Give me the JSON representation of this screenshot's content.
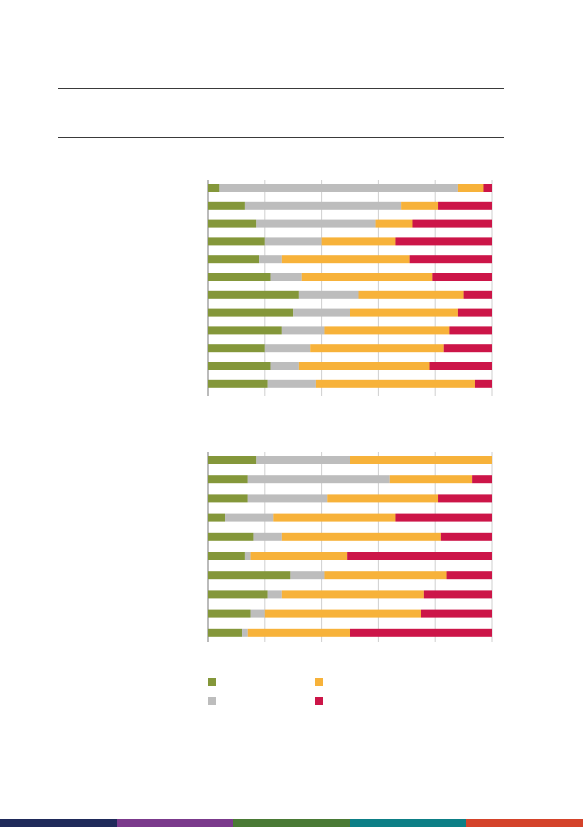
{
  "colors": {
    "green": "#84973a",
    "grey": "#bdbdbd",
    "orange": "#f7b23a",
    "crimson": "#cc1548",
    "rule": "#3a3a3a",
    "gridline": "#cfcfcf"
  },
  "chart_data": [
    {
      "type": "bar",
      "orientation": "horizontal",
      "stacked": true,
      "title": "",
      "xlabel": "",
      "ylabel": "",
      "xlim": [
        0,
        100
      ],
      "grid": true,
      "categories": [
        "",
        "",
        "",
        "",
        "",
        "",
        "",
        "",
        "",
        "",
        "",
        ""
      ],
      "series": [
        {
          "color": "#84973a",
          "values": [
            4,
            13,
            17,
            20,
            18,
            22,
            32,
            30,
            26,
            20,
            22,
            21
          ]
        },
        {
          "color": "#bdbdbd",
          "values": [
            84,
            55,
            42,
            20,
            8,
            11,
            21,
            20,
            15,
            16,
            10,
            17
          ]
        },
        {
          "color": "#f7b23a",
          "values": [
            9,
            13,
            13,
            26,
            45,
            46,
            37,
            38,
            44,
            47,
            46,
            56
          ]
        },
        {
          "color": "#cc1548",
          "values": [
            3,
            19,
            28,
            34,
            29,
            21,
            10,
            12,
            15,
            17,
            22,
            6
          ]
        }
      ]
    },
    {
      "type": "bar",
      "orientation": "horizontal",
      "stacked": true,
      "title": "",
      "xlabel": "",
      "ylabel": "",
      "xlim": [
        0,
        100
      ],
      "grid": true,
      "categories": [
        "",
        "",
        "",
        "",
        "",
        "",
        "",
        "",
        "",
        ""
      ],
      "series": [
        {
          "color": "#84973a",
          "values": [
            17,
            14,
            14,
            6,
            16,
            13,
            29,
            21,
            15,
            12
          ]
        },
        {
          "color": "#bdbdbd",
          "values": [
            33,
            50,
            28,
            17,
            10,
            2,
            12,
            5,
            5,
            2
          ]
        },
        {
          "color": "#f7b23a",
          "values": [
            50,
            29,
            39,
            43,
            56,
            34,
            43,
            50,
            55,
            36
          ]
        },
        {
          "color": "#cc1548",
          "values": [
            0,
            7,
            19,
            34,
            18,
            51,
            16,
            24,
            25,
            50
          ]
        }
      ]
    }
  ],
  "legend": [
    {
      "color": "#84973a",
      "label": ""
    },
    {
      "color": "#f7b23a",
      "label": ""
    },
    {
      "color": "#bdbdbd",
      "label": ""
    },
    {
      "color": "#cc1548",
      "label": ""
    }
  ],
  "footer_colors": [
    "#1f2a5a",
    "#7b3a8c",
    "#4a7a35",
    "#0d7f86",
    "#d4432a"
  ]
}
